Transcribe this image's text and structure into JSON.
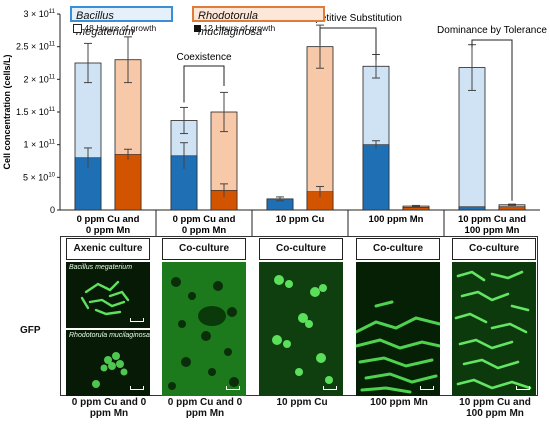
{
  "chart_data": {
    "type": "bar",
    "stacked": true,
    "ylabel": "Cell concentration (cells/L)",
    "ylim": [
      0,
      300000000000.0
    ],
    "yticks": [
      0,
      50000000000.0,
      100000000000.0,
      150000000000.0,
      200000000000.0,
      250000000000.0,
      300000000000.0
    ],
    "ytick_labels": [
      "0",
      "5 × 10^10",
      "1 × 10^11",
      "1.5 × 10^11",
      "2 × 10^11",
      "2.5 × 10^11",
      "3 × 10^11"
    ],
    "groups": [
      {
        "label": "0 ppm Cu and 0 ppm Mn"
      },
      {
        "label": "0 ppm Cu and 0 ppm Mn"
      },
      {
        "label": "10 ppm Cu"
      },
      {
        "label": "100 ppm Mn"
      },
      {
        "label": "10 ppm Cu and 100 ppm Mn"
      }
    ],
    "bars": [
      {
        "group": 0,
        "organism": "Bacillus megaterium",
        "total_48h": 225000000000.0,
        "err_48h": 30000000000.0,
        "val_12h": 80000000000.0,
        "err_12h": 15000000000.0
      },
      {
        "group": 0,
        "organism": "Rhodotorula mucilaginosa",
        "total_48h": 230000000000.0,
        "err_48h": 35000000000.0,
        "val_12h": 85000000000.0,
        "err_12h": 8000000000.0
      },
      {
        "group": 1,
        "organism": "Bacillus megaterium",
        "total_48h": 137000000000.0,
        "err_48h": 20000000000.0,
        "val_12h": 83000000000.0,
        "err_12h": 20000000000.0
      },
      {
        "group": 1,
        "organism": "Rhodotorula mucilaginosa",
        "total_48h": 150000000000.0,
        "err_48h": 30000000000.0,
        "val_12h": 30000000000.0,
        "err_12h": 10000000000.0
      },
      {
        "group": 2,
        "organism": "Bacillus megaterium",
        "total_48h": 17000000000.0,
        "err_48h": 3000000000.0,
        "val_12h": 17000000000.0,
        "err_12h": 0.0
      },
      {
        "group": 2,
        "organism": "Rhodotorula mucilaginosa",
        "total_48h": 250000000000.0,
        "err_48h": 33000000000.0,
        "val_12h": 28000000000.0,
        "err_12h": 8000000000.0
      },
      {
        "group": 3,
        "organism": "Bacillus megaterium",
        "total_48h": 220000000000.0,
        "err_48h": 18000000000.0,
        "val_12h": 100000000000.0,
        "err_12h": 6000000000.0
      },
      {
        "group": 3,
        "organism": "Rhodotorula mucilaginosa",
        "total_48h": 6000000000.0,
        "err_48h": 1000000000.0,
        "val_12h": 4000000000.0,
        "err_12h": 0.0
      },
      {
        "group": 4,
        "organism": "Bacillus megaterium",
        "total_48h": 218000000000.0,
        "err_48h": 35000000000.0,
        "val_12h": 5000000000.0,
        "err_12h": 0.0
      },
      {
        "group": 4,
        "organism": "Rhodotorula mucilaginosa",
        "total_48h": 8000000000.0,
        "err_48h": 1000000000.0,
        "val_12h": 5000000000.0,
        "err_12h": 0.0
      }
    ],
    "legend": {
      "organisms": [
        "Bacillus megaterium",
        "Rhodotorula mucilaginosa"
      ],
      "timepoints": [
        "48 Hours of growth",
        "12 Hours of growth"
      ]
    },
    "annotations": [
      {
        "text": "Coexistence",
        "group": 1
      },
      {
        "text": "Competitive Substitution",
        "groups": [
          2,
          3
        ]
      },
      {
        "text": "Dominance by Tolerance",
        "group": 4
      }
    ],
    "colors": {
      "bacillus_48h": "#cfe3f5",
      "bacillus_12h": "#1f6fb5",
      "rhodo_48h": "#f8c9a8",
      "rhodo_12h": "#d35400",
      "bacillus_border": "#3b8fd6",
      "rhodo_border": "#e07b39"
    }
  },
  "panels": {
    "headers": [
      "Axenic culture",
      "Co-culture",
      "Co-culture",
      "Co-culture",
      "Co-culture"
    ],
    "row_label": "GFP",
    "micro_labels": [
      "Bacillus megaterium",
      "Rhodotorula mucilaginosa"
    ],
    "bottom_labels": [
      "0 ppm Cu and 0 ppm Mn",
      "0 ppm Cu and 0 ppm Mn",
      "10 ppm Cu",
      "100 ppm Mn",
      "10 ppm Cu and 100 ppm Mn"
    ]
  }
}
